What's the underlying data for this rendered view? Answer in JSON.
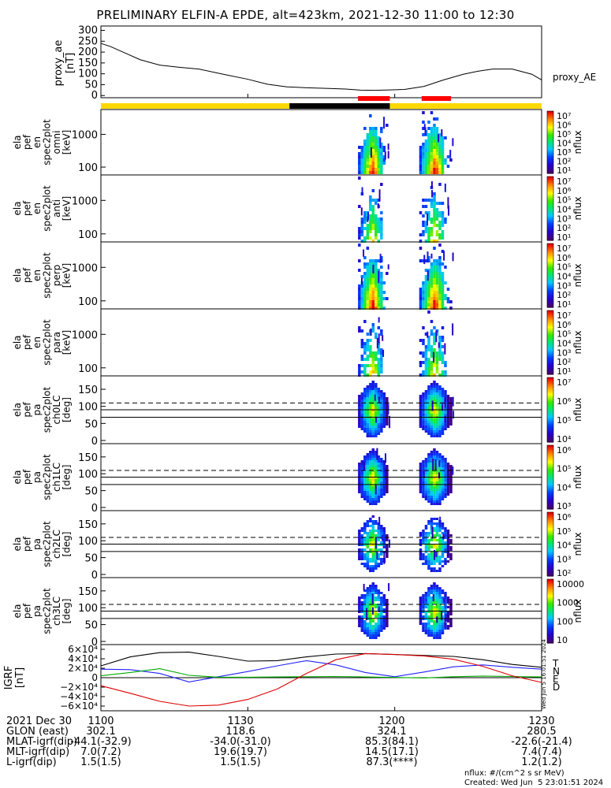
{
  "title": "PRELIMINARY ELFIN-A EPDE, alt=423km, 2021-12-30 11:00 to 12:30",
  "colors": {
    "phase_yellow": "#ffd800",
    "phase_black": "#000000",
    "phase_red": "#ff0000",
    "bx": "#2222ff",
    "by": "#00aa00",
    "bz": "#dd0000",
    "btot": "#000000"
  },
  "chart_data": [
    {
      "type": "line",
      "panel": "proxy_ae",
      "ylabel": [
        "proxy_ae",
        "[nT]"
      ],
      "legend": "proxy_AE",
      "yticks": [
        "300",
        "250",
        "200",
        "150",
        "100",
        "50",
        "0"
      ],
      "ylim": [
        -10,
        320
      ],
      "x_minutes": [
        0,
        2,
        5,
        8,
        12,
        16,
        20,
        25,
        30,
        34,
        38,
        42,
        46,
        50,
        53,
        56,
        59,
        62,
        66,
        70,
        74,
        77,
        80,
        84,
        88,
        90
      ],
      "values": [
        240,
        225,
        195,
        165,
        140,
        130,
        122,
        98,
        75,
        52,
        40,
        36,
        33,
        30,
        25,
        24,
        26,
        28,
        42,
        72,
        98,
        112,
        122,
        122,
        98,
        72
      ]
    },
    {
      "type": "heatmap",
      "panel": "en_omni",
      "ylabel": [
        "ela",
        "pef",
        "en",
        "spec2plot",
        "omni",
        "[keV]"
      ],
      "yticks": [
        "1000",
        "100"
      ],
      "colorbar_label": "nflux",
      "colorbar_ticks": [
        "10⁷",
        "10⁶",
        "10⁵",
        "10⁴",
        "10³",
        "10²",
        "10¹"
      ]
    },
    {
      "type": "heatmap",
      "panel": "en_anti",
      "ylabel": [
        "ela",
        "pef",
        "en",
        "spec2plot",
        "anti",
        "[keV]"
      ],
      "yticks": [
        "1000",
        "100"
      ],
      "colorbar_label": "nflux",
      "colorbar_ticks": [
        "10⁷",
        "10⁶",
        "10⁵",
        "10⁴",
        "10³",
        "10²",
        "10¹"
      ]
    },
    {
      "type": "heatmap",
      "panel": "en_perp",
      "ylabel": [
        "ela",
        "pef",
        "en",
        "spec2plot",
        "perp",
        "[keV]"
      ],
      "yticks": [
        "1000",
        "100"
      ],
      "colorbar_label": "nflux",
      "colorbar_ticks": [
        "10⁷",
        "10⁶",
        "10⁵",
        "10⁴",
        "10³",
        "10²",
        "10¹"
      ]
    },
    {
      "type": "heatmap",
      "panel": "en_para",
      "ylabel": [
        "ela",
        "pef",
        "en",
        "spec2plot",
        "para",
        "[keV]"
      ],
      "yticks": [
        "1000",
        "100"
      ],
      "colorbar_label": "nflux",
      "colorbar_ticks": [
        "10⁷",
        "10⁶",
        "10⁵",
        "10⁴",
        "10³",
        "10²",
        "10¹"
      ]
    },
    {
      "type": "heatmap",
      "panel": "pa_ch0LC",
      "ylabel": [
        "ela",
        "pef",
        "pa",
        "spec2plot",
        "ch0LC",
        "[deg]"
      ],
      "yticks": [
        "150",
        "100",
        "50",
        "0"
      ],
      "colorbar_label": "nflux",
      "colorbar_ticks": [
        "10⁷",
        "10⁶",
        "10⁵",
        "10⁴"
      ]
    },
    {
      "type": "heatmap",
      "panel": "pa_ch1LC",
      "ylabel": [
        "ela",
        "pef",
        "pa",
        "spec2plot",
        "ch1LC",
        "[deg]"
      ],
      "yticks": [
        "150",
        "100",
        "50",
        "0"
      ],
      "colorbar_label": "nflux",
      "colorbar_ticks": [
        "10⁶",
        "10⁵",
        "10⁴",
        "10³"
      ]
    },
    {
      "type": "heatmap",
      "panel": "pa_ch2LC",
      "ylabel": [
        "ela",
        "pef",
        "pa",
        "spec2plot",
        "ch2LC",
        "[deg]"
      ],
      "yticks": [
        "150",
        "100",
        "50",
        "0"
      ],
      "colorbar_label": "nflux",
      "colorbar_ticks": [
        "10⁶",
        "10⁵",
        "10⁴",
        "10³",
        "10²"
      ]
    },
    {
      "type": "heatmap",
      "panel": "pa_ch3LC",
      "ylabel": [
        "ela",
        "pef",
        "pa",
        "spec2plot",
        "ch3LC",
        "[deg]"
      ],
      "yticks": [
        "150",
        "100",
        "50",
        "0"
      ],
      "colorbar_label": "nflux",
      "colorbar_ticks": [
        "10000",
        "1000",
        "100",
        "10"
      ]
    },
    {
      "type": "line",
      "panel": "IGRF",
      "ylabel": [
        "IGRF",
        "[nT]"
      ],
      "yticks": [
        "6×10⁴",
        "4×10⁴",
        "2×10⁴",
        "0",
        "−2×10⁴",
        "−4×10⁴",
        "−6×10⁴"
      ],
      "ylim": [
        -70000,
        70000
      ],
      "legend": [
        "T",
        "N",
        "E",
        "D"
      ],
      "x_minutes": [
        0,
        6,
        12,
        18,
        24,
        30,
        36,
        42,
        48,
        54,
        60,
        66,
        72,
        78,
        84,
        90
      ],
      "series": [
        {
          "name": "T",
          "values": [
            25000,
            44000,
            53000,
            54000,
            45000,
            35000,
            36000,
            44000,
            50000,
            51000,
            49000,
            47000,
            45000,
            38000,
            28000,
            22000
          ]
        },
        {
          "name": "N",
          "values": [
            18000,
            17000,
            9000,
            -9000,
            2000,
            13000,
            25000,
            36000,
            27000,
            11000,
            2000,
            12000,
            23000,
            27000,
            22000,
            18000
          ]
        },
        {
          "name": "E",
          "values": [
            4000,
            11000,
            19000,
            5000,
            1000,
            1000,
            1500,
            2000,
            2500,
            1500,
            500,
            -500,
            2000,
            3500,
            2500,
            1500
          ]
        },
        {
          "name": "D",
          "values": [
            -17000,
            -33000,
            -50000,
            -60000,
            -58000,
            -46000,
            -24000,
            9000,
            38000,
            51000,
            49000,
            46000,
            39000,
            24000,
            4000,
            -10000
          ]
        }
      ]
    }
  ],
  "dashed_lines_deg": [
    110
  ],
  "solid_lines_deg": [
    90,
    68
  ],
  "time_labels": [
    "1100",
    "1130",
    "1200",
    "1230"
  ],
  "footer": {
    "rows": [
      {
        "label": "2021 Dec 30",
        "values": [
          "1100",
          "1130",
          "1200",
          "1230"
        ]
      },
      {
        "label": "GLON (east)",
        "values": [
          "302.1",
          "118.6",
          "324.1",
          "280.5"
        ]
      },
      {
        "label": "MLAT-igrf(dip)",
        "values": [
          "-44.1(-32.9)",
          "-34.0(-31.0)",
          "85.3(84.1)",
          "-22.6(-21.4)"
        ]
      },
      {
        "label": "MLT-igrf(dip)",
        "values": [
          "7.0(7.2)",
          "19.6(19.7)",
          "14.5(17.1)",
          "7.4(7.4)"
        ]
      },
      {
        "label": "L-igrf(dip)",
        "values": [
          "1.5(1.5)",
          "1.5(1.5)",
          "87.3(****)",
          "1.2(1.2)"
        ]
      }
    ],
    "units_note": "nflux: #/(cm^2 s sr MeV)",
    "created": "Created: Wed Jun  5 23:01:51 2024",
    "side_stamp": "Wed Jun  5 16:01:51 2024"
  }
}
